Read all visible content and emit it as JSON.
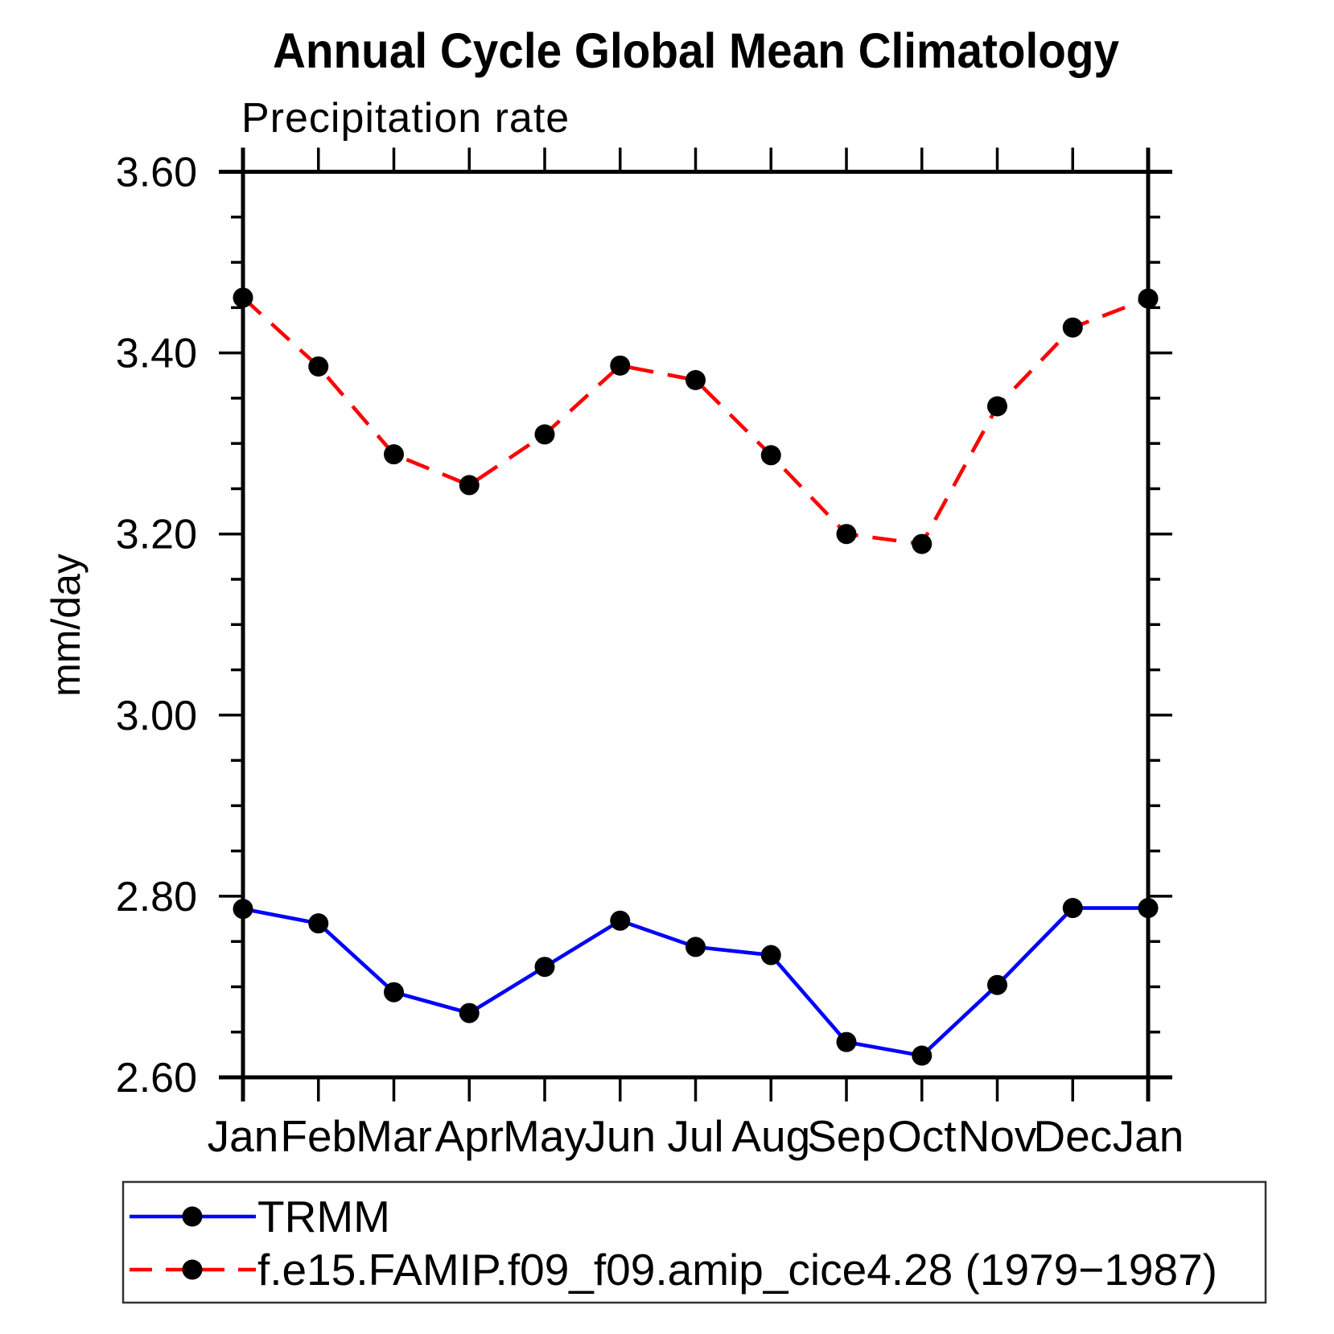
{
  "figure": {
    "background": "#ffffff",
    "axis_color": "#000000",
    "legend_border_color": "#333333"
  },
  "chart_data": {
    "type": "line",
    "title": "Annual Cycle Global Mean Climatology",
    "subtitle": "Precipitation rate",
    "ylabel": "mm/day",
    "xlabel": "",
    "categories": [
      "Jan",
      "Feb",
      "Mar",
      "Apr",
      "May",
      "Jun",
      "Jul",
      "Aug",
      "Sep",
      "Oct",
      "Nov",
      "Dec",
      "Jan"
    ],
    "ylim": [
      2.6,
      3.6
    ],
    "yticks": [
      2.6,
      2.8,
      3.0,
      3.2,
      3.4,
      3.6
    ],
    "ytick_labels": [
      "2.60",
      "2.80",
      "3.00",
      "3.20",
      "3.40",
      "3.60"
    ],
    "yminor_step": 0.05,
    "grid": false,
    "legend_position": "bottom",
    "series": [
      {
        "name": "TRMM",
        "color": "#0000ff",
        "line_style": "solid",
        "marker": "circle",
        "marker_color": "#000000",
        "values": [
          2.786,
          2.77,
          2.694,
          2.671,
          2.722,
          2.773,
          2.744,
          2.735,
          2.639,
          2.624,
          2.702,
          2.787,
          2.787
        ]
      },
      {
        "name": "f.e15.FAMIP.f09_f09.amip_cice4.28 (1979−1987)",
        "color": "#ff0000",
        "line_style": "dashed",
        "marker": "circle",
        "marker_color": "#000000",
        "values": [
          3.461,
          3.385,
          3.288,
          3.254,
          3.31,
          3.386,
          3.37,
          3.287,
          3.2,
          3.189,
          3.341,
          3.428,
          3.46
        ]
      }
    ]
  }
}
